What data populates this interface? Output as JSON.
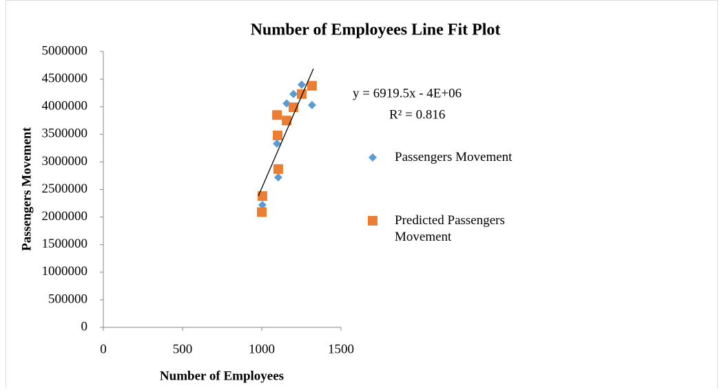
{
  "chart_data": {
    "type": "scatter",
    "title": "Number of Employees Line Fit  Plot",
    "x_label": "Number of Employees",
    "y_label": "Passengers Movement",
    "xlim": [
      0,
      1500
    ],
    "xticks": [
      0,
      500,
      1000,
      1500
    ],
    "ylim": [
      0,
      5000000
    ],
    "yticks": [
      0,
      500000,
      1000000,
      1500000,
      2000000,
      2500000,
      3000000,
      3500000,
      4000000,
      4500000,
      5000000
    ],
    "series": [
      {
        "name": "Passengers Movement",
        "color": "#5b9bd5",
        "marker": "diamond",
        "x": [
          1004,
          1104,
          1096,
          1157,
          1200,
          1252,
          1317
        ],
        "values": [
          2220000,
          2720000,
          3330000,
          4060000,
          4230000,
          4400000,
          4030000
        ]
      },
      {
        "name": "Predicted Passengers Movement",
        "color": "#ed7d31",
        "marker": "square",
        "x": [
          1000,
          1004,
          1104,
          1100,
          1096,
          1157,
          1200,
          1252,
          1317
        ],
        "values": [
          2090000,
          2380000,
          2870000,
          3480000,
          3850000,
          3750000,
          3990000,
          4230000,
          4380000
        ]
      }
    ],
    "trendline": {
      "x": [
        978,
        1326
      ],
      "values": [
        2380000,
        4690000
      ],
      "color": "#000000"
    },
    "equation": "y = 6919.5x - 4E+06",
    "r_squared": "R² = 0.816"
  }
}
